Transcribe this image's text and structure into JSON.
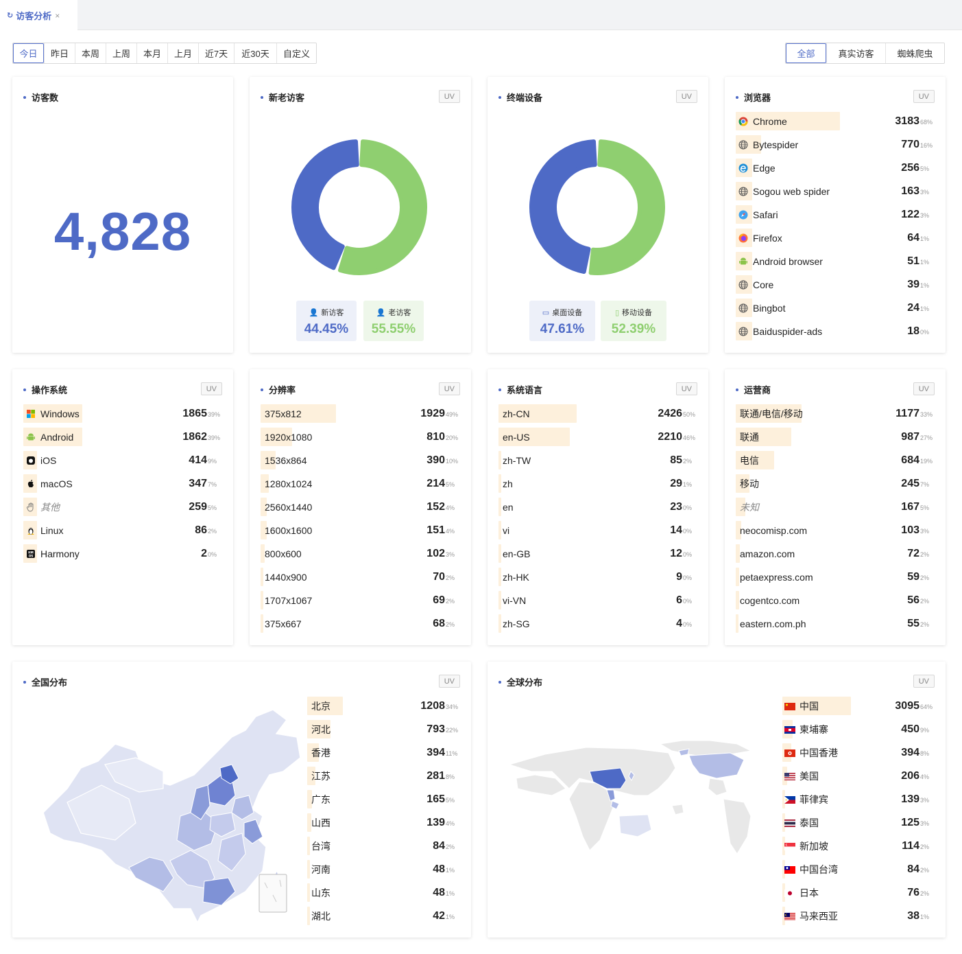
{
  "tab": {
    "icon": "refresh-icon",
    "title": "访客分析",
    "close": "×"
  },
  "range_buttons": [
    "今日",
    "昨日",
    "本周",
    "上周",
    "本月",
    "上月",
    "近7天",
    "近30天",
    "自定义"
  ],
  "type_buttons": [
    "全部",
    "真实访客",
    "蜘蛛爬虫"
  ],
  "uv_label": "UV",
  "visitors": {
    "title": "访客数",
    "value": "4,828"
  },
  "new_old": {
    "title": "新老访客",
    "new_label": "新访客",
    "new_pct": "44.45%",
    "new_value": 44.45,
    "old_label": "老访客",
    "old_pct": "55.55%",
    "old_value": 55.55
  },
  "devices": {
    "title": "终端设备",
    "desktop_label": "桌面设备",
    "desktop_pct": "47.61%",
    "desktop_value": 47.61,
    "mobile_label": "移动设备",
    "mobile_pct": "52.39%",
    "mobile_value": 52.39
  },
  "colors": {
    "primary": "#4e6ac6",
    "green": "#8fcf70",
    "bar": "#fdf0dc"
  },
  "browsers": {
    "title": "浏览器",
    "items": [
      {
        "icon": "chrome-icon",
        "name": "Chrome",
        "value": "3183",
        "pct": "68%"
      },
      {
        "icon": "globe-icon",
        "name": "Bytespider",
        "value": "770",
        "pct": "16%"
      },
      {
        "icon": "edge-icon",
        "name": "Edge",
        "value": "256",
        "pct": "5%"
      },
      {
        "icon": "globe-icon",
        "name": "Sogou web spider",
        "value": "163",
        "pct": "3%"
      },
      {
        "icon": "safari-icon",
        "name": "Safari",
        "value": "122",
        "pct": "3%"
      },
      {
        "icon": "firefox-icon",
        "name": "Firefox",
        "value": "64",
        "pct": "1%"
      },
      {
        "icon": "android-icon",
        "name": "Android browser",
        "value": "51",
        "pct": "1%"
      },
      {
        "icon": "globe-icon",
        "name": "Core",
        "value": "39",
        "pct": "1%"
      },
      {
        "icon": "globe-icon",
        "name": "Bingbot",
        "value": "24",
        "pct": "1%"
      },
      {
        "icon": "globe-icon",
        "name": "Baiduspider-ads",
        "value": "18",
        "pct": "0%"
      }
    ]
  },
  "os": {
    "title": "操作系统",
    "items": [
      {
        "icon": "windows-icon",
        "name": "Windows",
        "value": "1865",
        "pct": "39%"
      },
      {
        "icon": "android-icon",
        "name": "Android",
        "value": "1862",
        "pct": "39%"
      },
      {
        "icon": "ios-icon",
        "name": "iOS",
        "value": "414",
        "pct": "9%"
      },
      {
        "icon": "apple-icon",
        "name": "macOS",
        "value": "347",
        "pct": "7%"
      },
      {
        "icon": "hand-icon",
        "name": "其他",
        "value": "259",
        "pct": "5%"
      },
      {
        "icon": "linux-icon",
        "name": "Linux",
        "value": "86",
        "pct": "2%"
      },
      {
        "icon": "harmony-icon",
        "name": "Harmony",
        "value": "2",
        "pct": "0%"
      }
    ]
  },
  "resolution": {
    "title": "分辨率",
    "items": [
      {
        "name": "375x812",
        "value": "1929",
        "pct": "49%"
      },
      {
        "name": "1920x1080",
        "value": "810",
        "pct": "20%"
      },
      {
        "name": "1536x864",
        "value": "390",
        "pct": "10%"
      },
      {
        "name": "1280x1024",
        "value": "214",
        "pct": "5%"
      },
      {
        "name": "2560x1440",
        "value": "152",
        "pct": "4%"
      },
      {
        "name": "1600x1600",
        "value": "151",
        "pct": "4%"
      },
      {
        "name": "800x600",
        "value": "102",
        "pct": "3%"
      },
      {
        "name": "1440x900",
        "value": "70",
        "pct": "2%"
      },
      {
        "name": "1707x1067",
        "value": "69",
        "pct": "2%"
      },
      {
        "name": "375x667",
        "value": "68",
        "pct": "2%"
      }
    ]
  },
  "language": {
    "title": "系统语言",
    "items": [
      {
        "name": "zh-CN",
        "value": "2426",
        "pct": "50%"
      },
      {
        "name": "en-US",
        "value": "2210",
        "pct": "46%"
      },
      {
        "name": "zh-TW",
        "value": "85",
        "pct": "2%"
      },
      {
        "name": "zh",
        "value": "29",
        "pct": "1%"
      },
      {
        "name": "en",
        "value": "23",
        "pct": "0%"
      },
      {
        "name": "vi",
        "value": "14",
        "pct": "0%"
      },
      {
        "name": "en-GB",
        "value": "12",
        "pct": "0%"
      },
      {
        "name": "zh-HK",
        "value": "9",
        "pct": "0%"
      },
      {
        "name": "vi-VN",
        "value": "6",
        "pct": "0%"
      },
      {
        "name": "zh-SG",
        "value": "4",
        "pct": "0%"
      }
    ]
  },
  "carrier": {
    "title": "运营商",
    "items": [
      {
        "name": "联通/电信/移动",
        "value": "1177",
        "pct": "33%"
      },
      {
        "name": "联通",
        "value": "987",
        "pct": "27%"
      },
      {
        "name": "电信",
        "value": "684",
        "pct": "19%"
      },
      {
        "name": "移动",
        "value": "245",
        "pct": "7%"
      },
      {
        "name": "未知",
        "value": "167",
        "pct": "5%"
      },
      {
        "name": "neocomisp.com",
        "value": "103",
        "pct": "3%"
      },
      {
        "name": "amazon.com",
        "value": "72",
        "pct": "2%"
      },
      {
        "name": "petaexpress.com",
        "value": "59",
        "pct": "2%"
      },
      {
        "name": "cogentco.com",
        "value": "56",
        "pct": "2%"
      },
      {
        "name": "eastern.com.ph",
        "value": "55",
        "pct": "2%"
      }
    ]
  },
  "china": {
    "title": "全国分布",
    "items": [
      {
        "name": "北京",
        "value": "1208",
        "pct": "34%"
      },
      {
        "name": "河北",
        "value": "793",
        "pct": "22%"
      },
      {
        "name": "香港",
        "value": "394",
        "pct": "11%"
      },
      {
        "name": "江苏",
        "value": "281",
        "pct": "8%"
      },
      {
        "name": "广东",
        "value": "165",
        "pct": "5%"
      },
      {
        "name": "山西",
        "value": "139",
        "pct": "4%"
      },
      {
        "name": "台湾",
        "value": "84",
        "pct": "2%"
      },
      {
        "name": "河南",
        "value": "48",
        "pct": "1%"
      },
      {
        "name": "山东",
        "value": "48",
        "pct": "1%"
      },
      {
        "name": "湖北",
        "value": "42",
        "pct": "1%"
      }
    ]
  },
  "world": {
    "title": "全球分布",
    "items": [
      {
        "icon": "flag-cn-icon",
        "name": "中国",
        "value": "3095",
        "pct": "64%"
      },
      {
        "icon": "flag-kh-icon",
        "name": "柬埔寨",
        "value": "450",
        "pct": "9%"
      },
      {
        "icon": "flag-hk-icon",
        "name": "中国香港",
        "value": "394",
        "pct": "8%"
      },
      {
        "icon": "flag-us-icon",
        "name": "美国",
        "value": "206",
        "pct": "4%"
      },
      {
        "icon": "flag-ph-icon",
        "name": "菲律宾",
        "value": "139",
        "pct": "3%"
      },
      {
        "icon": "flag-th-icon",
        "name": "泰国",
        "value": "125",
        "pct": "3%"
      },
      {
        "icon": "flag-sg-icon",
        "name": "新加坡",
        "value": "114",
        "pct": "2%"
      },
      {
        "icon": "flag-tw-icon",
        "name": "中国台湾",
        "value": "84",
        "pct": "2%"
      },
      {
        "icon": "flag-jp-icon",
        "name": "日本",
        "value": "76",
        "pct": "2%"
      },
      {
        "icon": "flag-my-icon",
        "name": "马来西亚",
        "value": "38",
        "pct": "1%"
      }
    ]
  }
}
